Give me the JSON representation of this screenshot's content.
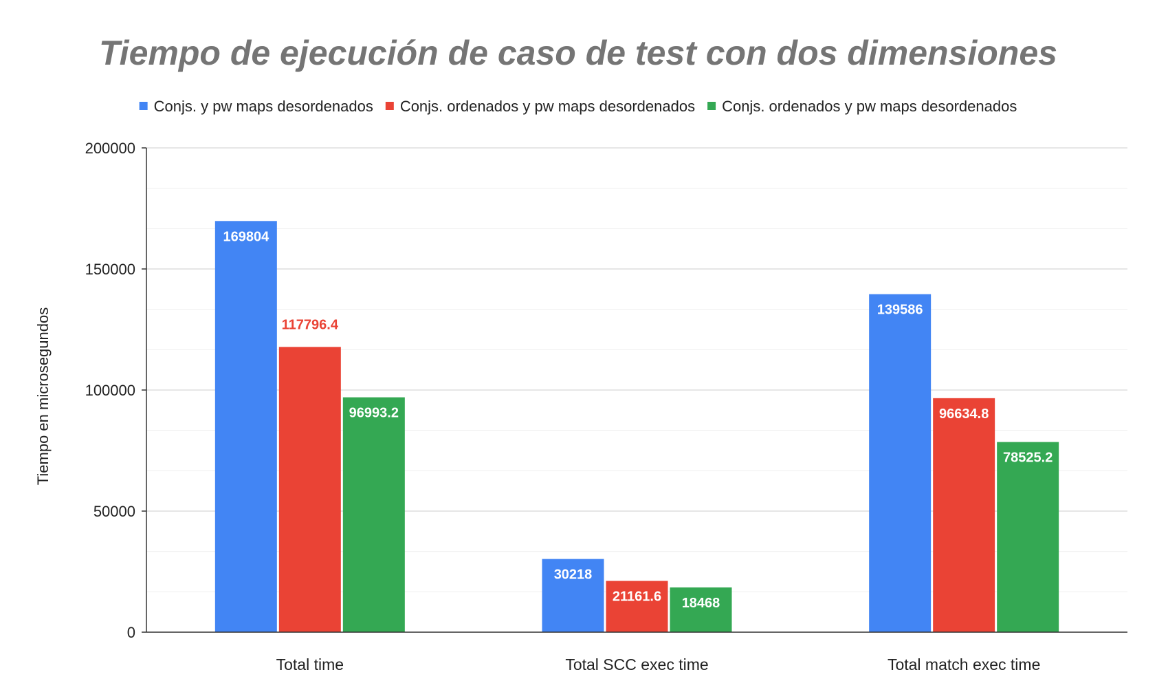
{
  "chart_data": {
    "type": "bar",
    "title": "Tiempo de ejecución de caso de test con dos dimensiones",
    "xlabel": "",
    "ylabel": "Tiempo en microsegundos",
    "ylim": [
      0,
      200000
    ],
    "yticks": [
      0,
      50000,
      100000,
      150000,
      200000
    ],
    "grid": true,
    "legend_position": "top",
    "categories": [
      "Total time",
      "Total SCC exec time",
      "Total match exec time"
    ],
    "series": [
      {
        "name": "Conjs. y pw maps desordenados",
        "color": "#4285f4",
        "values": [
          169804,
          30218,
          139586
        ],
        "labels": [
          "169804",
          "30218",
          "139586"
        ]
      },
      {
        "name": "Conjs. ordenados y pw maps desordenados",
        "color": "#ea4335",
        "values": [
          117796.4,
          21161.6,
          96634.8
        ],
        "labels": [
          "117796.4",
          "21161.6",
          "96634.8"
        ]
      },
      {
        "name": "Conjs. ordenados y pw maps desordenados",
        "color": "#34a853",
        "values": [
          96993.2,
          18468,
          78525.2
        ],
        "labels": [
          "96993.2",
          "18468",
          "78525.2"
        ]
      }
    ]
  }
}
